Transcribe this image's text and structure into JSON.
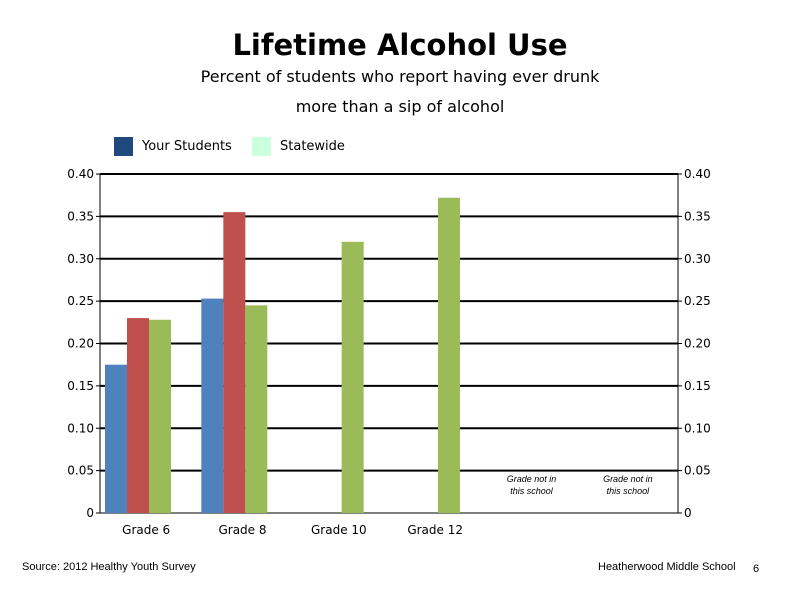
{
  "title": "Lifetime Alcohol Use",
  "subtitle_line1": "Percent of students who report having ever drunk",
  "subtitle_line2": "more than a sip of alcohol",
  "legend": [
    {
      "label": "Your Students",
      "color": "#1f497d"
    },
    {
      "label": "Statewide",
      "color": "#ccffdd"
    }
  ],
  "footer": {
    "source": "Source: 2012 Healthy Youth Survey",
    "school": "Heatherwood Middle  School",
    "page": "6"
  },
  "chart_data": {
    "type": "bar",
    "categories": [
      "Grade 6",
      "Grade 8",
      "Grade 10",
      "Grade 12",
      "",
      ""
    ],
    "series": [
      {
        "values": [
          0.175,
          0.253,
          null,
          null,
          null,
          null
        ],
        "color": "#4f81bd"
      },
      {
        "values": [
          0.23,
          0.355,
          null,
          null,
          null,
          null
        ],
        "color": "#c0504d"
      },
      {
        "values": [
          0.228,
          0.245,
          0.32,
          0.372,
          null,
          null
        ],
        "color": "#9bbb59"
      }
    ],
    "annotations": [
      {
        "category_index": 4,
        "line1": "Grade not in",
        "line2": "this school"
      },
      {
        "category_index": 5,
        "line1": "Grade not in",
        "line2": "this school"
      }
    ],
    "yticks": [
      "0",
      "0.05",
      "0.10",
      "0.15",
      "0.20",
      "0.25",
      "0.30",
      "0.35",
      "0.40"
    ],
    "ylim": [
      0,
      0.4
    ],
    "grid": true,
    "legend_position": "top-left"
  }
}
